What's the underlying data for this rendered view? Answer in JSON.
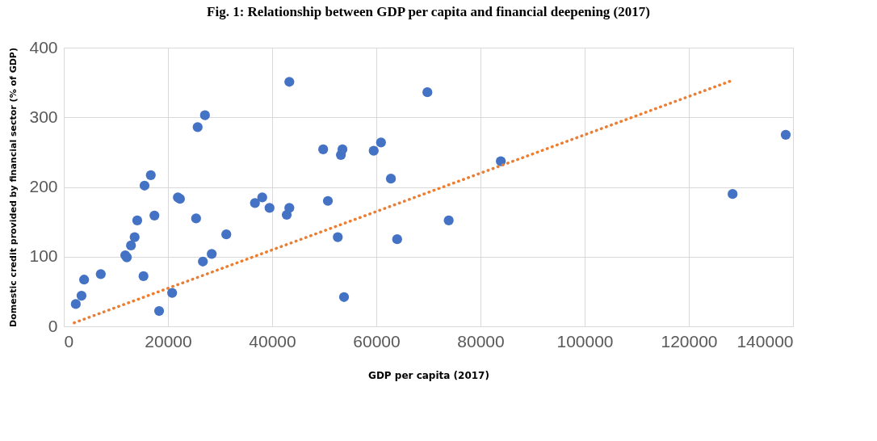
{
  "chart_data": {
    "type": "scatter",
    "title": "Fig. 1: Relationship between GDP per capita and financial deepening (2017)",
    "xlabel": "GDP per capita (2017)",
    "ylabel": "Domestic credit provided by financial sector (% of GDP)",
    "xlim": [
      0,
      140000
    ],
    "xticks": [
      0,
      20000,
      40000,
      60000,
      80000,
      100000,
      120000,
      140000
    ],
    "ylim": [
      0,
      400
    ],
    "yticks": [
      0,
      100,
      200,
      300,
      400
    ],
    "grid": true,
    "series": [
      {
        "color": "#4472c4",
        "marker": "circle",
        "x": [
          2300,
          3400,
          3900,
          7100,
          11800,
          12100,
          12900,
          13600,
          14100,
          15500,
          15300,
          16700,
          17400,
          18300,
          20800,
          21900,
          22300,
          25400,
          25700,
          27100,
          26700,
          28400,
          31200,
          36700,
          38100,
          39500,
          42800,
          43300,
          43300,
          49800,
          50700,
          52600,
          53200,
          53500,
          53800,
          59500,
          60900,
          62800,
          64000,
          69800,
          73900,
          83900,
          128400,
          138600
        ],
        "values": [
          32,
          44,
          67,
          75,
          102,
          99,
          116,
          128,
          152,
          202,
          72,
          217,
          159,
          22,
          48,
          185,
          183,
          155,
          286,
          303,
          93,
          104,
          132,
          177,
          185,
          170,
          160,
          170,
          351,
          254,
          180,
          128,
          246,
          254,
          42,
          252,
          264,
          212,
          125,
          336,
          152,
          237,
          190,
          275
        ]
      },
      {
        "type": "line",
        "color": "#ed7d31",
        "line_style": "dotted",
        "marker": "none",
        "x": [
          2000,
          128000
        ],
        "values": [
          5,
          352
        ]
      }
    ]
  }
}
